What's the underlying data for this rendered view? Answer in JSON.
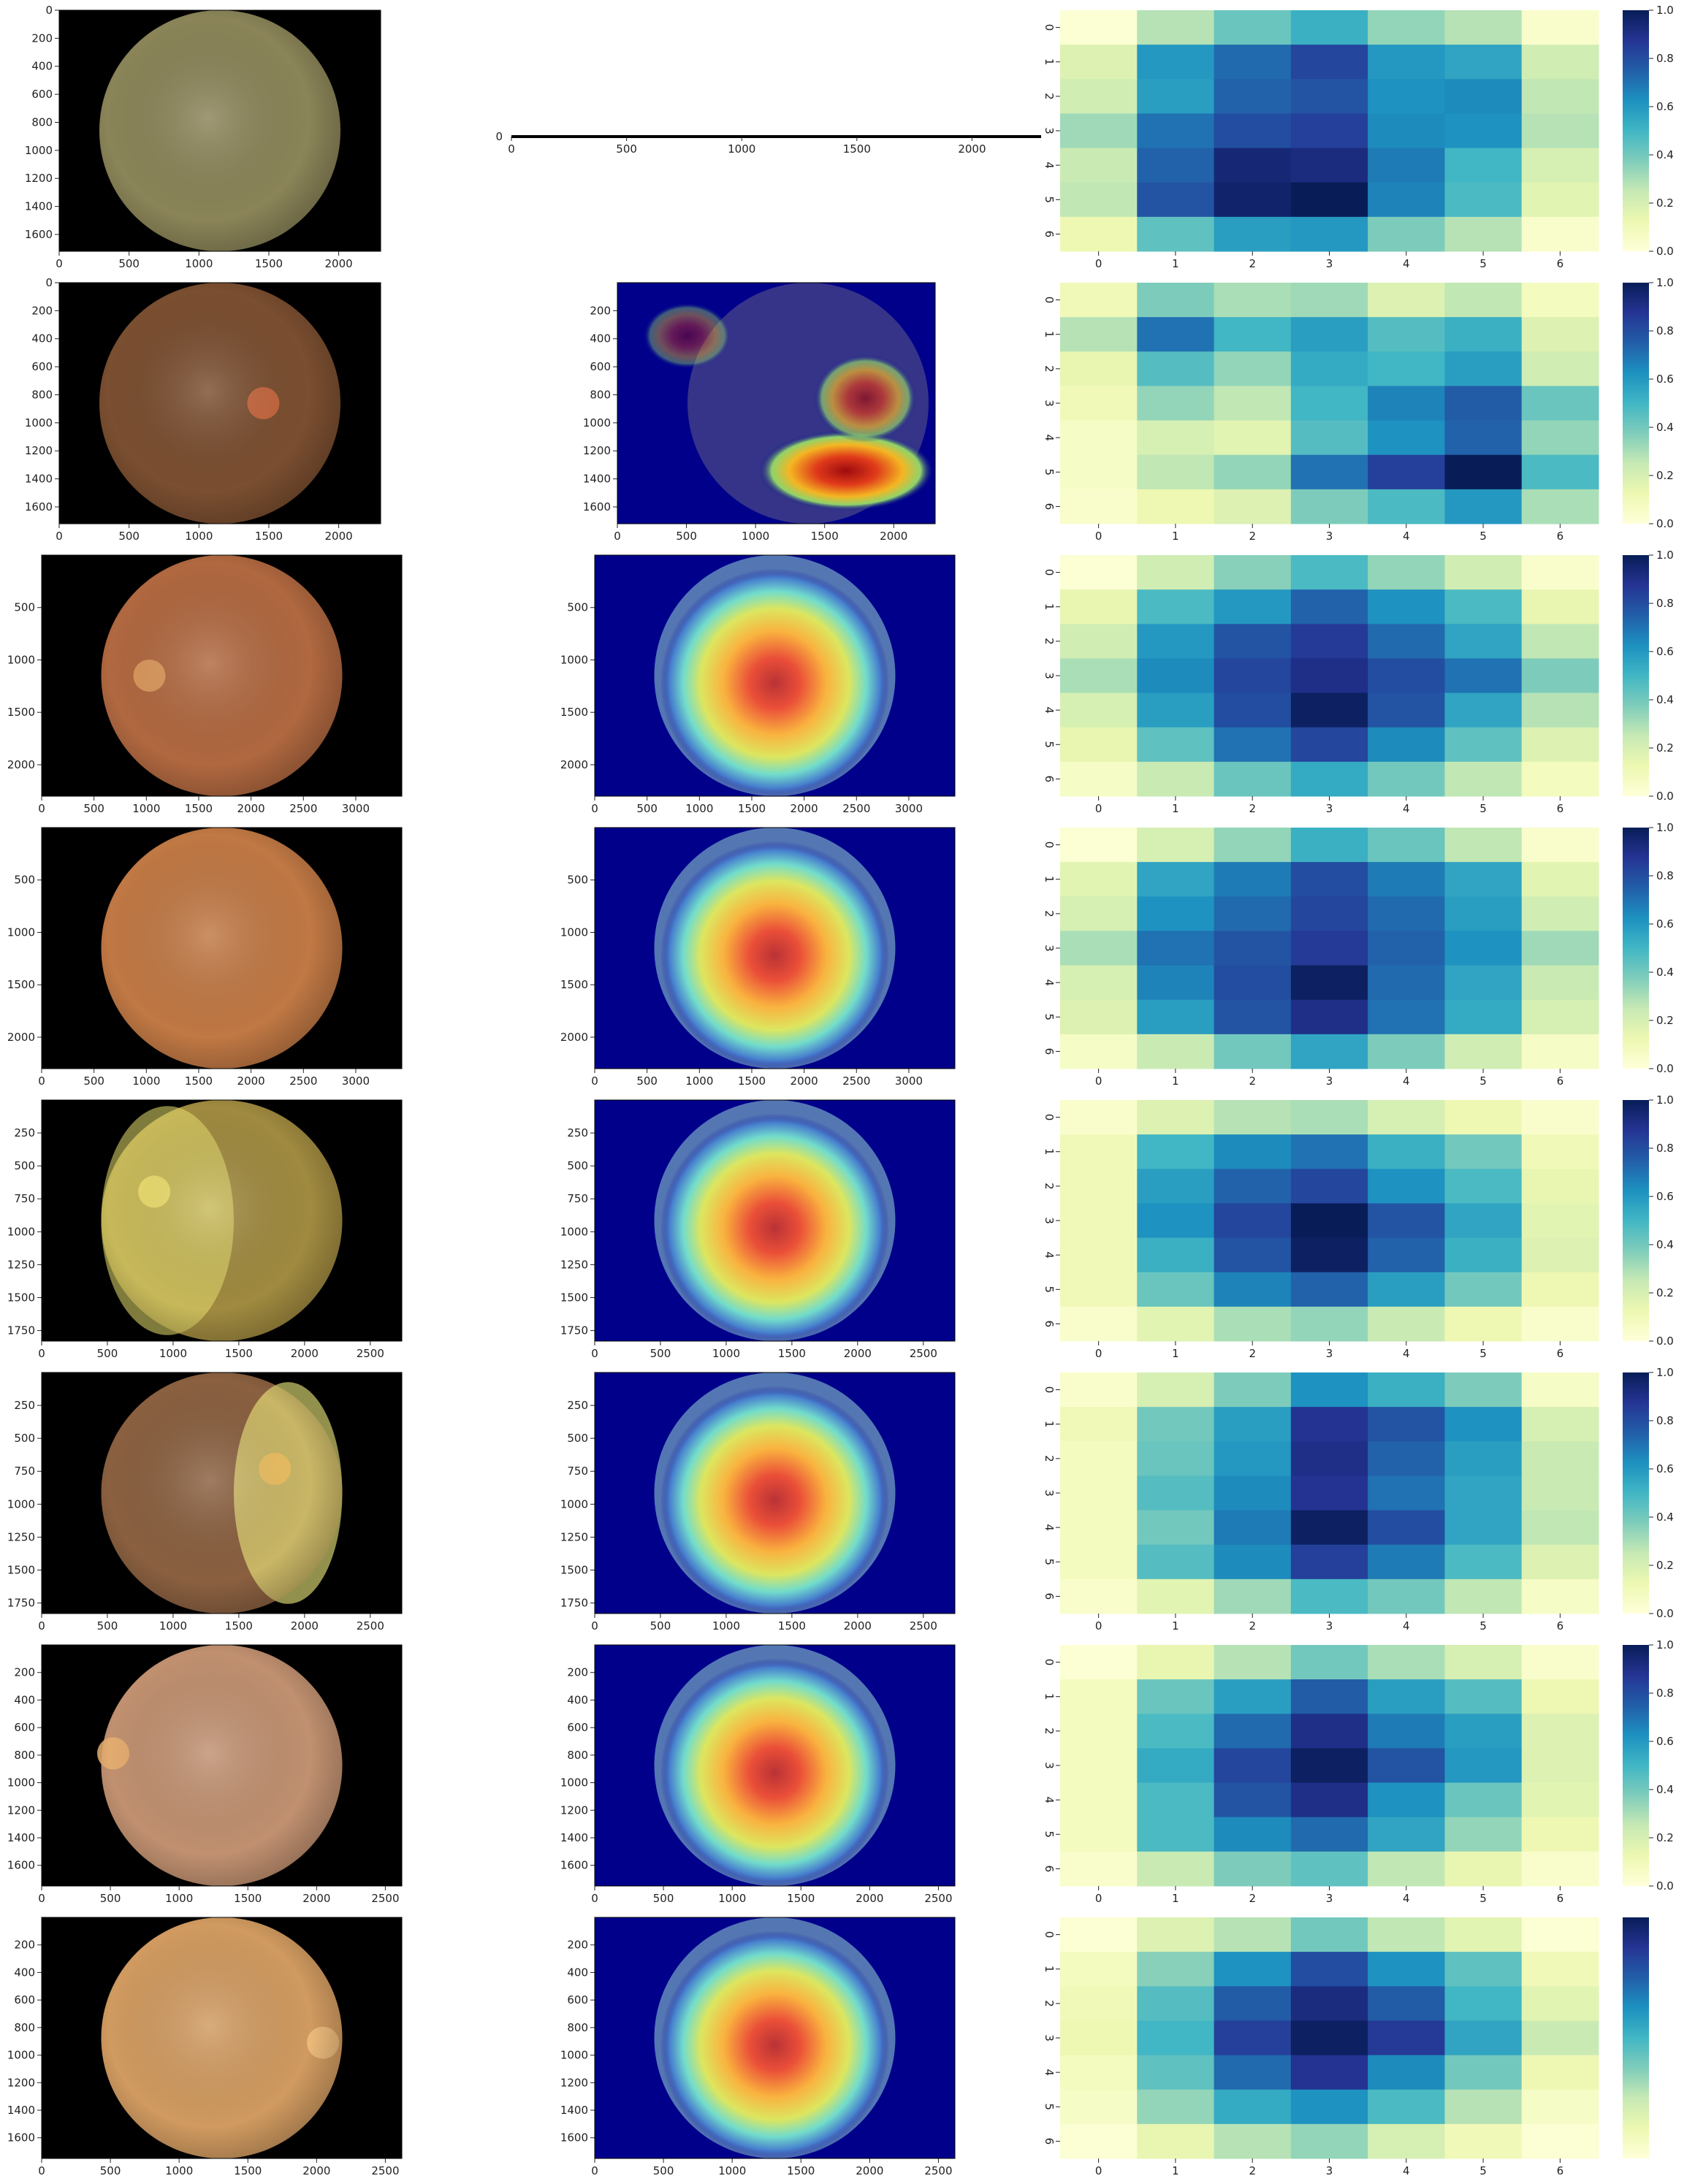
{
  "figure": {
    "rows": [
      {
        "fundus": {
          "xticks": [
            0,
            500,
            1000,
            1500,
            2000
          ],
          "yticks": [
            0,
            200,
            400,
            600,
            800,
            1000,
            1200,
            1400,
            1600
          ],
          "xmax": 2300,
          "ymax": 1720
        },
        "cam": {
          "empty": true,
          "xticks": [
            0,
            500,
            1000,
            1500,
            2000
          ],
          "xmax": 2300,
          "yticks_label": "0"
        },
        "heat": [
          [
            0.02,
            0.28,
            0.42,
            0.52,
            0.34,
            0.28,
            0.04
          ],
          [
            0.18,
            0.6,
            0.72,
            0.82,
            0.6,
            0.56,
            0.22
          ],
          [
            0.22,
            0.58,
            0.74,
            0.78,
            0.62,
            0.64,
            0.26
          ],
          [
            0.32,
            0.7,
            0.8,
            0.84,
            0.64,
            0.62,
            0.28
          ],
          [
            0.24,
            0.74,
            0.94,
            0.92,
            0.68,
            0.5,
            0.2
          ],
          [
            0.26,
            0.78,
            0.96,
            1.0,
            0.66,
            0.48,
            0.16
          ],
          [
            0.12,
            0.44,
            0.58,
            0.6,
            0.38,
            0.28,
            0.04
          ]
        ]
      },
      {
        "fundus": {
          "xticks": [
            0,
            500,
            1000,
            1500,
            2000
          ],
          "yticks": [
            0,
            200,
            400,
            600,
            800,
            1000,
            1200,
            1400,
            1600
          ],
          "xmax": 2300,
          "ymax": 1720
        },
        "cam": {
          "xticks": [
            0,
            500,
            1000,
            1500,
            2000
          ],
          "yticks": [
            200,
            400,
            600,
            800,
            1000,
            1200,
            1400,
            1600
          ],
          "xmax": 2300,
          "ymax": 1720
        },
        "heat": [
          [
            0.1,
            0.38,
            0.3,
            0.32,
            0.18,
            0.26,
            0.08
          ],
          [
            0.28,
            0.7,
            0.5,
            0.58,
            0.46,
            0.52,
            0.18
          ],
          [
            0.14,
            0.46,
            0.34,
            0.54,
            0.5,
            0.58,
            0.22
          ],
          [
            0.1,
            0.34,
            0.26,
            0.5,
            0.66,
            0.76,
            0.42
          ],
          [
            0.06,
            0.2,
            0.16,
            0.46,
            0.62,
            0.74,
            0.34
          ],
          [
            0.06,
            0.26,
            0.34,
            0.7,
            0.84,
            1.0,
            0.48
          ],
          [
            0.04,
            0.12,
            0.18,
            0.38,
            0.48,
            0.6,
            0.3
          ]
        ]
      },
      {
        "fundus": {
          "xticks": [
            0,
            500,
            1000,
            1500,
            2000,
            2500,
            3000
          ],
          "yticks": [
            500,
            1000,
            1500,
            2000
          ],
          "xmax": 3440,
          "ymax": 2300
        },
        "cam": {
          "xticks": [
            0,
            500,
            1000,
            1500,
            2000,
            2500,
            3000
          ],
          "yticks": [
            500,
            1000,
            1500,
            2000
          ],
          "xmax": 3440,
          "ymax": 2300
        },
        "heat": [
          [
            0.02,
            0.22,
            0.36,
            0.48,
            0.34,
            0.22,
            0.04
          ],
          [
            0.14,
            0.48,
            0.6,
            0.74,
            0.62,
            0.48,
            0.14
          ],
          [
            0.22,
            0.6,
            0.78,
            0.86,
            0.72,
            0.56,
            0.26
          ],
          [
            0.3,
            0.64,
            0.82,
            0.9,
            0.8,
            0.7,
            0.38
          ],
          [
            0.2,
            0.58,
            0.8,
            0.98,
            0.78,
            0.56,
            0.28
          ],
          [
            0.14,
            0.44,
            0.7,
            0.82,
            0.64,
            0.44,
            0.18
          ],
          [
            0.06,
            0.24,
            0.42,
            0.54,
            0.4,
            0.26,
            0.08
          ]
        ]
      },
      {
        "fundus": {
          "xticks": [
            0,
            500,
            1000,
            1500,
            2000,
            2500,
            3000
          ],
          "yticks": [
            500,
            1000,
            1500,
            2000
          ],
          "xmax": 3440,
          "ymax": 2300
        },
        "cam": {
          "xticks": [
            0,
            500,
            1000,
            1500,
            2000,
            2500,
            3000
          ],
          "yticks": [
            500,
            1000,
            1500,
            2000
          ],
          "xmax": 3440,
          "ymax": 2300
        },
        "heat": [
          [
            0.02,
            0.2,
            0.34,
            0.52,
            0.42,
            0.26,
            0.04
          ],
          [
            0.16,
            0.56,
            0.68,
            0.8,
            0.68,
            0.56,
            0.16
          ],
          [
            0.2,
            0.62,
            0.72,
            0.82,
            0.72,
            0.58,
            0.22
          ],
          [
            0.3,
            0.7,
            0.78,
            0.86,
            0.74,
            0.62,
            0.32
          ],
          [
            0.2,
            0.66,
            0.8,
            0.98,
            0.72,
            0.56,
            0.24
          ],
          [
            0.18,
            0.58,
            0.78,
            0.9,
            0.7,
            0.54,
            0.2
          ],
          [
            0.06,
            0.24,
            0.4,
            0.56,
            0.38,
            0.22,
            0.06
          ]
        ]
      },
      {
        "fundus": {
          "xticks": [
            0,
            500,
            1000,
            1500,
            2000,
            2500
          ],
          "yticks": [
            250,
            500,
            750,
            1000,
            1250,
            1500,
            1750
          ],
          "xmax": 2740,
          "ymax": 1830
        },
        "cam": {
          "xticks": [
            0,
            500,
            1000,
            1500,
            2000,
            2500
          ],
          "yticks": [
            250,
            500,
            750,
            1000,
            1250,
            1500,
            1750
          ],
          "xmax": 2740,
          "ymax": 1830
        },
        "heat": [
          [
            0.04,
            0.18,
            0.28,
            0.3,
            0.2,
            0.12,
            0.04
          ],
          [
            0.1,
            0.5,
            0.64,
            0.7,
            0.52,
            0.4,
            0.1
          ],
          [
            0.1,
            0.58,
            0.74,
            0.82,
            0.62,
            0.48,
            0.14
          ],
          [
            0.1,
            0.62,
            0.82,
            1.0,
            0.78,
            0.56,
            0.16
          ],
          [
            0.1,
            0.52,
            0.78,
            0.98,
            0.74,
            0.52,
            0.18
          ],
          [
            0.1,
            0.42,
            0.66,
            0.74,
            0.58,
            0.4,
            0.12
          ],
          [
            0.04,
            0.16,
            0.3,
            0.34,
            0.24,
            0.12,
            0.04
          ]
        ]
      },
      {
        "fundus": {
          "xticks": [
            0,
            500,
            1000,
            1500,
            2000,
            2500
          ],
          "yticks": [
            250,
            500,
            750,
            1000,
            1250,
            1500,
            1750
          ],
          "xmax": 2740,
          "ymax": 1830
        },
        "cam": {
          "xticks": [
            0,
            500,
            1000,
            1500,
            2000,
            2500
          ],
          "yticks": [
            250,
            500,
            750,
            1000,
            1250,
            1500,
            1750
          ],
          "xmax": 2740,
          "ymax": 1830
        },
        "heat": [
          [
            0.04,
            0.2,
            0.38,
            0.62,
            0.52,
            0.38,
            0.06
          ],
          [
            0.1,
            0.4,
            0.58,
            0.88,
            0.78,
            0.62,
            0.2
          ],
          [
            0.08,
            0.42,
            0.6,
            0.9,
            0.74,
            0.58,
            0.24
          ],
          [
            0.08,
            0.46,
            0.64,
            0.88,
            0.7,
            0.56,
            0.24
          ],
          [
            0.08,
            0.4,
            0.68,
            0.98,
            0.8,
            0.56,
            0.26
          ],
          [
            0.08,
            0.46,
            0.64,
            0.84,
            0.68,
            0.48,
            0.18
          ],
          [
            0.04,
            0.16,
            0.32,
            0.48,
            0.4,
            0.26,
            0.06
          ]
        ]
      },
      {
        "fundus": {
          "xticks": [
            0,
            500,
            1000,
            1500,
            2000,
            2500
          ],
          "yticks": [
            200,
            400,
            600,
            800,
            1000,
            1200,
            1400,
            1600
          ],
          "xmax": 2620,
          "ymax": 1750
        },
        "cam": {
          "xticks": [
            0,
            500,
            1000,
            1500,
            2000,
            2500
          ],
          "yticks": [
            200,
            400,
            600,
            800,
            1000,
            1200,
            1400,
            1600
          ],
          "xmax": 2620,
          "ymax": 1750
        },
        "heat": [
          [
            0.02,
            0.14,
            0.28,
            0.4,
            0.3,
            0.2,
            0.04
          ],
          [
            0.08,
            0.42,
            0.58,
            0.76,
            0.58,
            0.46,
            0.12
          ],
          [
            0.08,
            0.48,
            0.72,
            0.9,
            0.68,
            0.58,
            0.18
          ],
          [
            0.08,
            0.54,
            0.82,
            0.98,
            0.78,
            0.6,
            0.18
          ],
          [
            0.08,
            0.48,
            0.78,
            0.9,
            0.62,
            0.42,
            0.16
          ],
          [
            0.08,
            0.48,
            0.64,
            0.72,
            0.56,
            0.34,
            0.12
          ],
          [
            0.04,
            0.24,
            0.38,
            0.44,
            0.26,
            0.14,
            0.04
          ]
        ]
      },
      {
        "fundus": {
          "xticks": [
            0,
            500,
            1000,
            1500,
            2000,
            2500
          ],
          "yticks": [
            200,
            400,
            600,
            800,
            1000,
            1200,
            1400,
            1600
          ],
          "xmax": 2620,
          "ymax": 1750
        },
        "cam": {
          "xticks": [
            0,
            500,
            1000,
            1500,
            2000,
            2500
          ],
          "yticks": [
            200,
            400,
            600,
            800,
            1000,
            1200,
            1400,
            1600
          ],
          "xmax": 2620,
          "ymax": 1750
        },
        "heat": [
          [
            0.02,
            0.18,
            0.28,
            0.4,
            0.26,
            0.16,
            0.02
          ],
          [
            0.08,
            0.36,
            0.62,
            0.8,
            0.62,
            0.44,
            0.1
          ],
          [
            0.1,
            0.46,
            0.76,
            0.92,
            0.76,
            0.5,
            0.16
          ],
          [
            0.12,
            0.5,
            0.84,
            0.98,
            0.86,
            0.56,
            0.24
          ],
          [
            0.08,
            0.44,
            0.72,
            0.88,
            0.64,
            0.4,
            0.12
          ],
          [
            0.06,
            0.34,
            0.54,
            0.62,
            0.48,
            0.28,
            0.06
          ],
          [
            0.02,
            0.14,
            0.28,
            0.34,
            0.2,
            0.1,
            0.02
          ]
        ]
      }
    ],
    "heat_ticks": [
      "0",
      "1",
      "2",
      "3",
      "4",
      "5",
      "6"
    ],
    "colorbar": {
      "ticks": [
        "0.0",
        "0.2",
        "0.4",
        "0.6",
        "0.8",
        "1.0"
      ]
    },
    "colors": {
      "fundus_bg": "#000000",
      "cam_bg": "#00008b"
    }
  },
  "chart_data": {
    "type": "heatmap",
    "colormap": "YlGnBu",
    "vmin": 0.0,
    "vmax": 1.0,
    "xticklabels": [
      "0",
      "1",
      "2",
      "3",
      "4",
      "5",
      "6"
    ],
    "yticklabels": [
      "0",
      "1",
      "2",
      "3",
      "4",
      "5",
      "6"
    ],
    "colorbar_ticks": [
      0.0,
      0.2,
      0.4,
      0.6,
      0.8,
      1.0
    ]
  }
}
